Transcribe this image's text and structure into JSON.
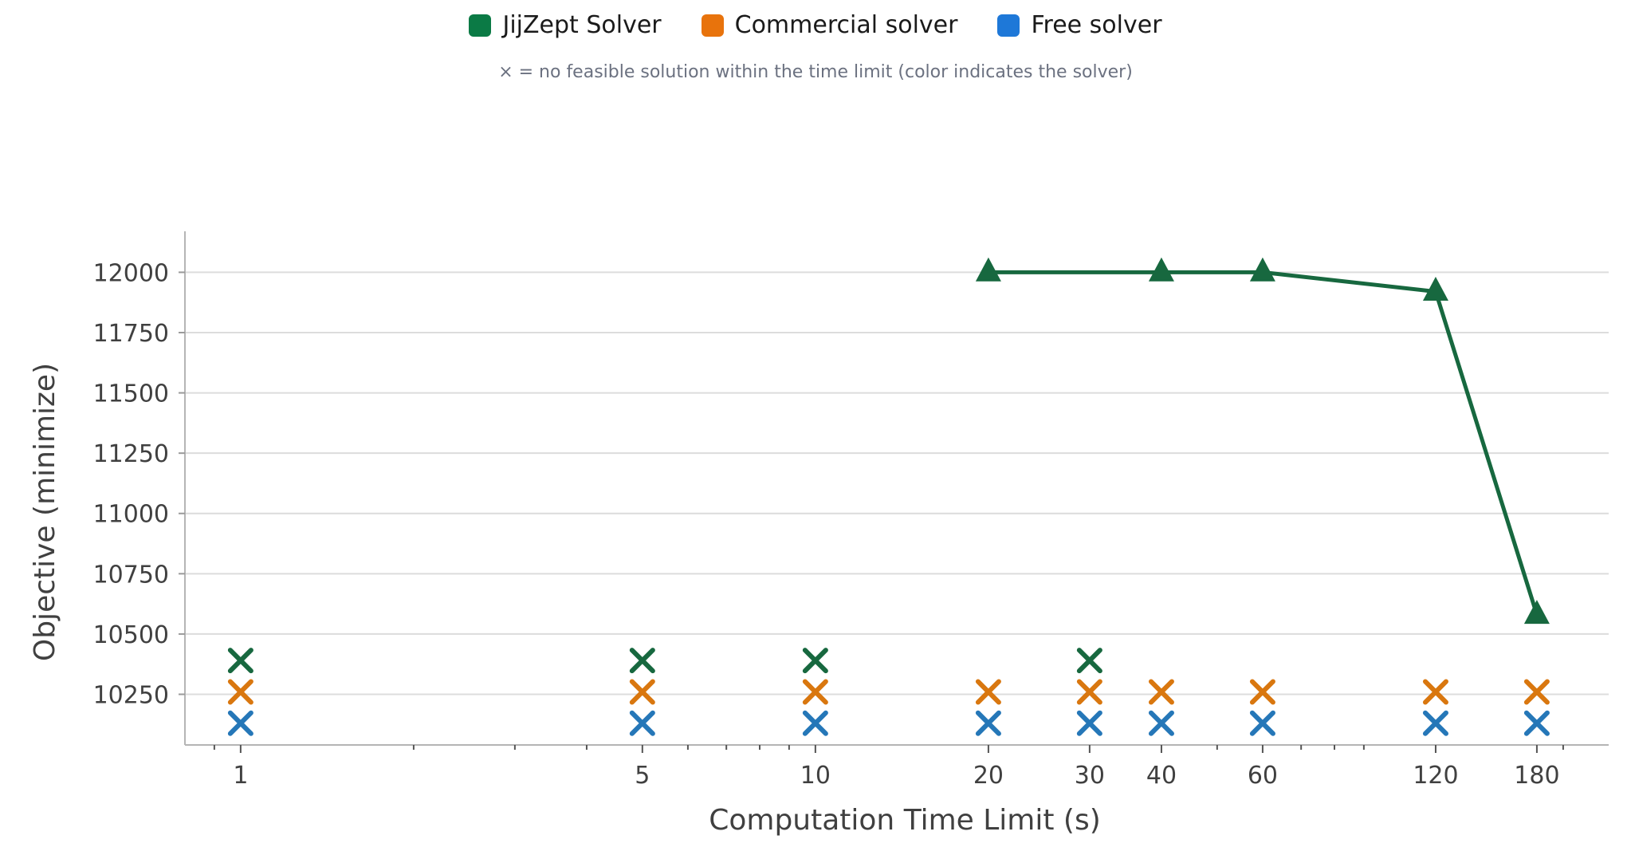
{
  "legend": {
    "items": [
      {
        "label": "JijZept Solver",
        "color": "#0b7a45"
      },
      {
        "label": "Commercial solver",
        "color": "#e8730c"
      },
      {
        "label": "Free solver",
        "color": "#1e78d8"
      }
    ],
    "note": "× = no feasible solution within the time limit (color indicates the solver)"
  },
  "chart_data": {
    "type": "line",
    "xlabel": "Computation Time Limit (s)",
    "ylabel": "Objective (minimize)",
    "xscale": "log",
    "xlim": [
      0.8,
      240
    ],
    "ylim": [
      10040,
      12170
    ],
    "xticks": [
      1,
      5,
      10,
      20,
      30,
      40,
      60,
      120,
      180
    ],
    "yticks": [
      10250,
      10500,
      10750,
      11000,
      11250,
      11500,
      11750,
      12000
    ],
    "grid": "horizontal",
    "series": [
      {
        "name": "JijZept Solver",
        "color": "#17683f",
        "marker": "triangle",
        "x": [
          20,
          40,
          60,
          120,
          180
        ],
        "y": [
          12000,
          12000,
          12000,
          11920,
          10580
        ]
      }
    ],
    "infeasible": [
      {
        "solver": "JijZept Solver",
        "color": "#17683f",
        "x": [
          1,
          5,
          10,
          30
        ],
        "y": 10390
      },
      {
        "solver": "Commercial solver",
        "color": "#d9770f",
        "x": [
          1,
          5,
          10,
          20,
          30,
          40,
          60,
          120,
          180
        ],
        "y": 10260
      },
      {
        "solver": "Free solver",
        "color": "#2577b8",
        "x": [
          1,
          5,
          10,
          20,
          30,
          40,
          60,
          120,
          180
        ],
        "y": 10130
      }
    ]
  }
}
